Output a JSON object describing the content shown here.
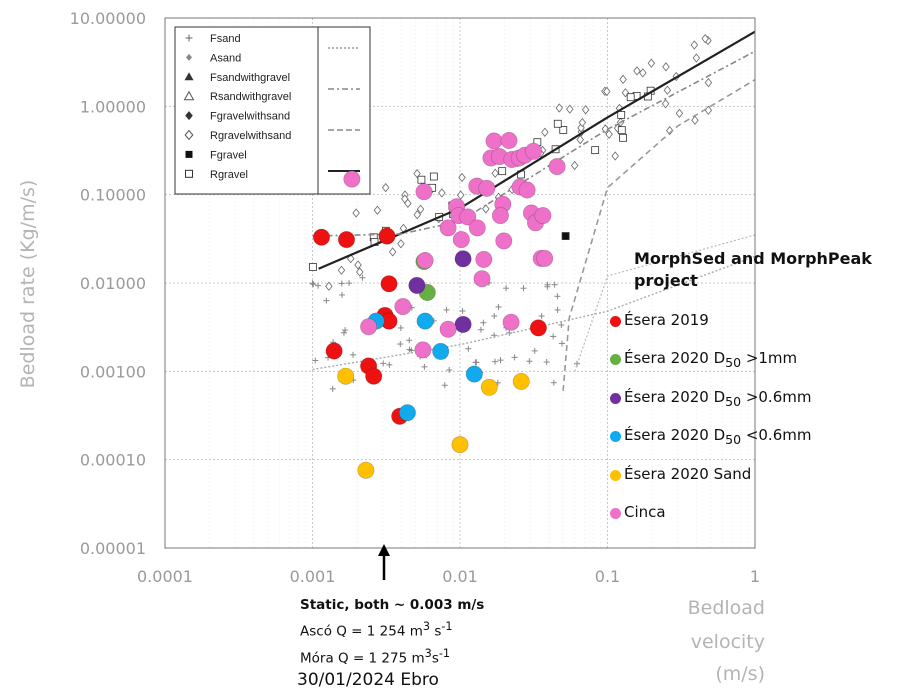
{
  "chart_data": {
    "type": "scatter",
    "title": "",
    "xlabel": [
      "Bedload",
      "velocity",
      "(m/s)"
    ],
    "ylabel": "Bedload rate (Kg/m/s)",
    "xscale": "log",
    "yscale": "log",
    "xlim": [
      0.0001,
      1
    ],
    "ylim": [
      1e-05,
      10
    ],
    "xticks": [
      "0.0001",
      "0.001",
      "0.01",
      "0.1",
      "1"
    ],
    "yticks": [
      "10.00000",
      "1.00000",
      "0.10000",
      "0.01000",
      "0.00100",
      "0.00010",
      "0.00001"
    ],
    "grid": true,
    "inset_legend": {
      "placement": "top-left",
      "items": [
        {
          "label": "Fsand",
          "marker": "plus"
        },
        {
          "label": "Asand",
          "marker": "small-diamond"
        },
        {
          "label": "Fsandwithgravel",
          "marker": "triangle-filled"
        },
        {
          "label": "Rsandwithgravel",
          "marker": "triangle-open"
        },
        {
          "label": "Fgravelwithsand",
          "marker": "diamond-filled"
        },
        {
          "label": "Rgravelwithsand",
          "marker": "diamond-open"
        },
        {
          "label": "Fgravel",
          "marker": "square-filled"
        },
        {
          "label": "Rgravel",
          "marker": "square-open"
        }
      ],
      "line_styles": [
        "dotted",
        "dash-dot",
        "dashed",
        "solid"
      ]
    },
    "legend": {
      "title": "MorphSed and MorphPeak project",
      "placement": "right",
      "items": [
        {
          "text": "Ésera 2019",
          "sub": "",
          "rest": "",
          "color": "#ee1111"
        },
        {
          "text": "Ésera 2020 D",
          "sub": "50",
          "rest": " >1mm",
          "color": "#66b043"
        },
        {
          "text": "Ésera 2020 D",
          "sub": "50",
          "rest": " >0.6mm",
          "color": "#7030a0"
        },
        {
          "text": "Ésera 2020 D",
          "sub": "50",
          "rest": " <0.6mm",
          "color": "#11aaee"
        },
        {
          "text": "Ésera 2020 Sand",
          "sub": "",
          "rest": "",
          "color": "#ffc000"
        },
        {
          "text": "Cinca",
          "sub": "",
          "rest": "",
          "color": "#ee70c8"
        }
      ]
    },
    "series": [
      {
        "name": "Ésera 2019",
        "color": "#ee1111",
        "points": [
          [
            0.00115,
            0.033
          ],
          [
            0.0017,
            0.031
          ],
          [
            0.0032,
            0.034
          ],
          [
            0.0033,
            0.0098
          ],
          [
            0.0031,
            0.0043
          ],
          [
            0.0033,
            0.0037
          ],
          [
            0.0014,
            0.0017
          ],
          [
            0.0024,
            0.00115
          ],
          [
            0.0026,
            0.00088
          ],
          [
            0.0039,
            0.00031
          ],
          [
            0.034,
            0.0031
          ]
        ]
      },
      {
        "name": "Ésera 2020 D50 >1mm",
        "color": "#66b043",
        "points": [
          [
            0.0057,
            0.0175
          ],
          [
            0.006,
            0.0078
          ]
        ]
      },
      {
        "name": "Ésera 2020 D50 >0.6mm",
        "color": "#7030a0",
        "points": [
          [
            0.0051,
            0.0094
          ],
          [
            0.0105,
            0.0188
          ],
          [
            0.0105,
            0.0034
          ]
        ]
      },
      {
        "name": "Ésera 2020 D50 <0.6mm",
        "color": "#11aaee",
        "points": [
          [
            0.0027,
            0.0037
          ],
          [
            0.0058,
            0.0037
          ],
          [
            0.0074,
            0.00168
          ],
          [
            0.0044,
            0.00034
          ],
          [
            0.0125,
            0.00093
          ]
        ]
      },
      {
        "name": "Ésera 2020 Sand",
        "color": "#ffc000",
        "points": [
          [
            0.00168,
            0.00088
          ],
          [
            0.0023,
            7.6e-05
          ],
          [
            0.01,
            0.000148
          ],
          [
            0.0158,
            0.00066
          ],
          [
            0.026,
            0.00077
          ]
        ]
      },
      {
        "name": "Cinca",
        "color": "#ee70c8",
        "points": [
          [
            0.00185,
            0.15
          ],
          [
            0.0057,
            0.108
          ],
          [
            0.0058,
            0.018
          ],
          [
            0.0041,
            0.0054
          ],
          [
            0.0024,
            0.0032
          ],
          [
            0.0056,
            0.00175
          ],
          [
            0.0083,
            0.003
          ],
          [
            0.0083,
            0.042
          ],
          [
            0.0095,
            0.073
          ],
          [
            0.0098,
            0.058
          ],
          [
            0.0102,
            0.031
          ],
          [
            0.0113,
            0.056
          ],
          [
            0.013,
            0.125
          ],
          [
            0.0152,
            0.118
          ],
          [
            0.0131,
            0.042
          ],
          [
            0.0141,
            0.0112
          ],
          [
            0.0145,
            0.0185
          ],
          [
            0.017,
            0.405
          ],
          [
            0.0162,
            0.26
          ],
          [
            0.0185,
            0.27
          ],
          [
            0.0195,
            0.078
          ],
          [
            0.0188,
            0.058
          ],
          [
            0.0198,
            0.03
          ],
          [
            0.0215,
            0.41
          ],
          [
            0.0225,
            0.25
          ],
          [
            0.0252,
            0.26
          ],
          [
            0.0275,
            0.28
          ],
          [
            0.0315,
            0.31
          ],
          [
            0.0255,
            0.122
          ],
          [
            0.0285,
            0.113
          ],
          [
            0.0305,
            0.062
          ],
          [
            0.0325,
            0.048
          ],
          [
            0.0365,
            0.058
          ],
          [
            0.0355,
            0.019
          ],
          [
            0.0375,
            0.019
          ],
          [
            0.0455,
            0.208
          ],
          [
            0.0222,
            0.0036
          ]
        ]
      }
    ],
    "annotation": {
      "lines": [
        {
          "text": "Static, both ~ 0.003 m/s"
        },
        {
          "pre": "Ascó  Q = 1 254 m",
          "sup1": "3",
          "mid": " s",
          "sup2": "-1"
        },
        {
          "pre": "Móra Q = 1 275 m",
          "sup1": "3",
          "mid": "s",
          "sup2": "-1"
        }
      ],
      "arrow_at_x": 0.003
    },
    "footer": "30/01/2024 Ebro"
  }
}
